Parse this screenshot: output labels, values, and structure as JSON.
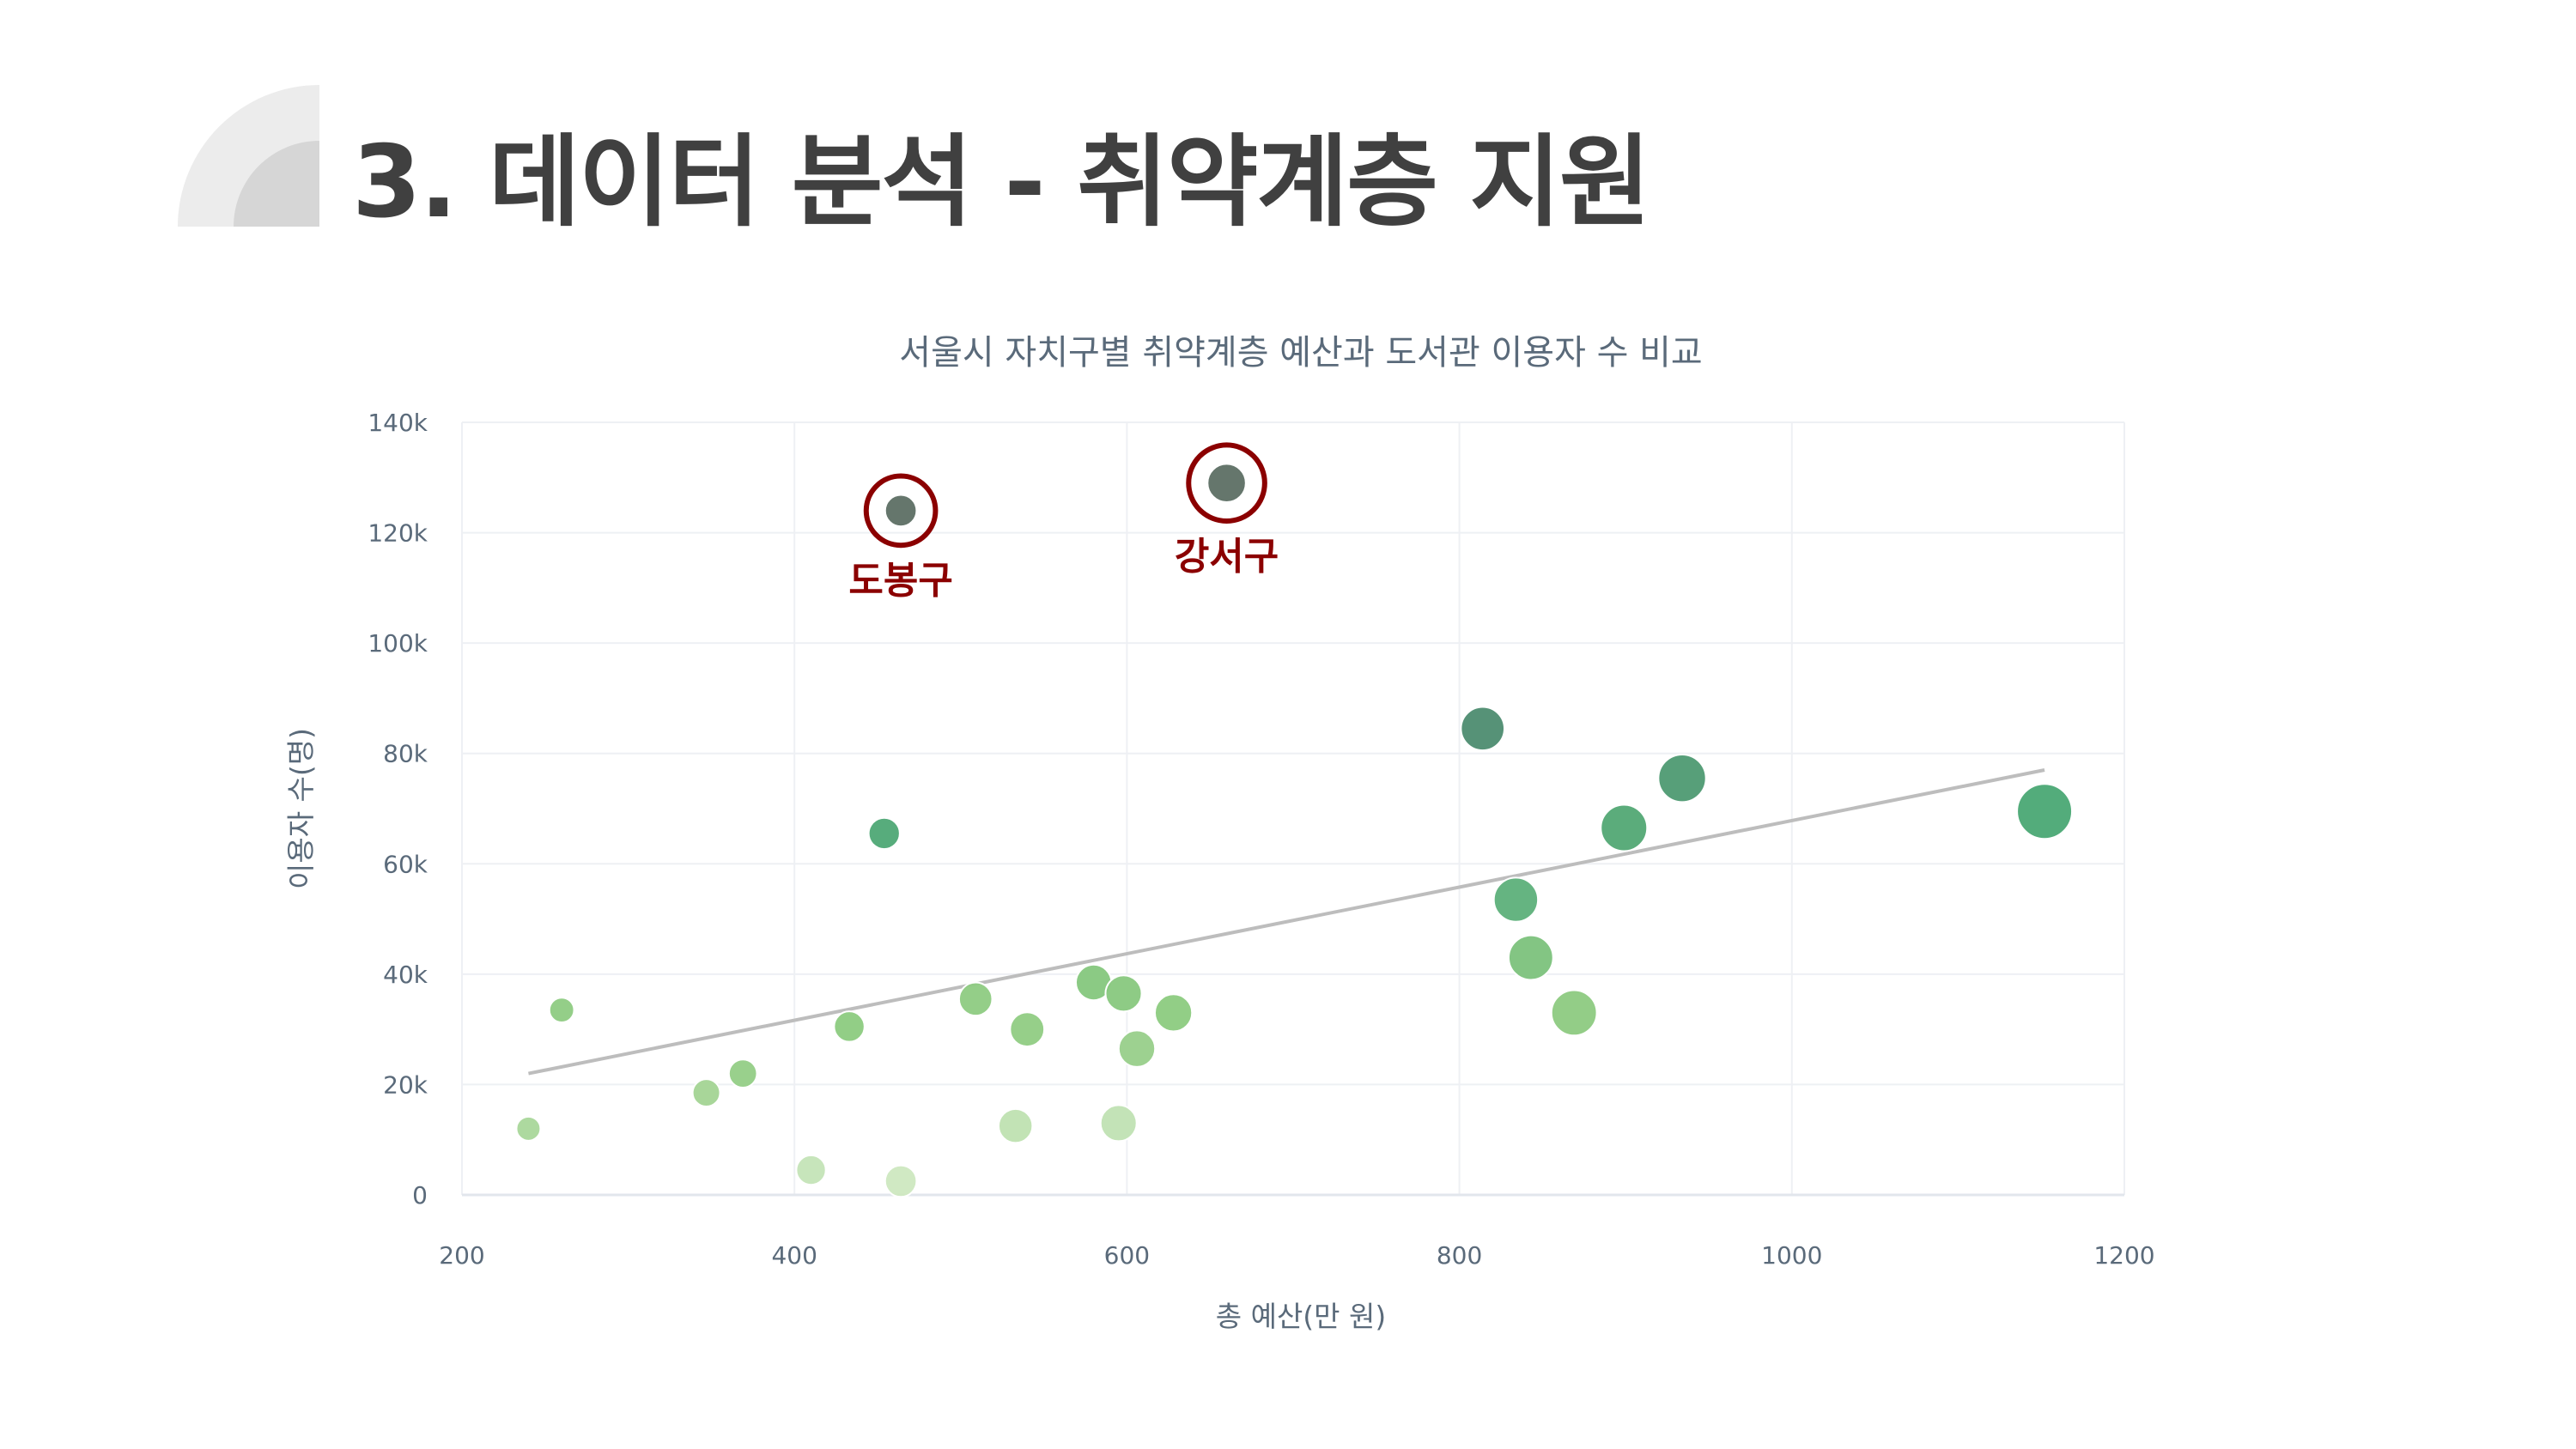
{
  "slide": {
    "title": "3. 데이터 분석 - 취약계층 지원"
  },
  "colors": {
    "title_text": "#404040",
    "deco_light": "#ececec",
    "deco_dark": "#d6d6d6",
    "grid": "#eef0f4",
    "axis_text": "#5a6a7a",
    "trend": "#bdbdbd",
    "highlight": "#8b0000"
  },
  "chart_data": {
    "type": "scatter",
    "title": "서울시 자치구별 취약계층 예산과 도서관 이용자 수 비교",
    "xlabel": "총 예산(만 원)",
    "ylabel": "이용자 수(명)",
    "xlim": [
      200,
      1200
    ],
    "ylim": [
      0,
      140000
    ],
    "xticks": [
      200,
      400,
      600,
      800,
      1000,
      1200
    ],
    "yticks": [
      0,
      20000,
      40000,
      60000,
      80000,
      100000,
      120000,
      140000
    ],
    "ytick_labels": [
      "0",
      "20k",
      "40k",
      "60k",
      "80k",
      "100k",
      "120k",
      "140k"
    ],
    "grid": true,
    "points": [
      {
        "x": 240,
        "y": 12000,
        "size": 240,
        "color": "#a9d79a"
      },
      {
        "x": 260,
        "y": 33500,
        "size": 260,
        "color": "#8ecb82"
      },
      {
        "x": 347,
        "y": 18500,
        "size": 340,
        "color": "#a3d494"
      },
      {
        "x": 369,
        "y": 22000,
        "size": 360,
        "color": "#94cd86"
      },
      {
        "x": 410,
        "y": 4500,
        "size": 400,
        "color": "#c4e4b7"
      },
      {
        "x": 433,
        "y": 30500,
        "size": 430,
        "color": "#8ccb80"
      },
      {
        "x": 454,
        "y": 65500,
        "size": 450,
        "color": "#4ea875"
      },
      {
        "x": 464,
        "y": 2500,
        "size": 460,
        "color": "#cde8c0"
      },
      {
        "x": 464,
        "y": 124000,
        "size": 460,
        "color": "#5d6f64"
      },
      {
        "x": 509,
        "y": 35500,
        "size": 510,
        "color": "#8ecb82"
      },
      {
        "x": 533,
        "y": 12500,
        "size": 530,
        "color": "#bfe2b1"
      },
      {
        "x": 540,
        "y": 30000,
        "size": 540,
        "color": "#90cc83"
      },
      {
        "x": 580,
        "y": 38500,
        "size": 580,
        "color": "#85c77d"
      },
      {
        "x": 595,
        "y": 13000,
        "size": 595,
        "color": "#c0e2b3"
      },
      {
        "x": 598,
        "y": 36500,
        "size": 598,
        "color": "#88c87e"
      },
      {
        "x": 606,
        "y": 26500,
        "size": 606,
        "color": "#98cf8a"
      },
      {
        "x": 628,
        "y": 33000,
        "size": 628,
        "color": "#8ccb80"
      },
      {
        "x": 660,
        "y": 129000,
        "size": 660,
        "color": "#5d6f64"
      },
      {
        "x": 814,
        "y": 84500,
        "size": 814,
        "color": "#4d8c70"
      },
      {
        "x": 834,
        "y": 53500,
        "size": 834,
        "color": "#5db07a"
      },
      {
        "x": 843,
        "y": 43000,
        "size": 843,
        "color": "#7cc27c"
      },
      {
        "x": 869,
        "y": 33000,
        "size": 869,
        "color": "#8dca81"
      },
      {
        "x": 899,
        "y": 66500,
        "size": 899,
        "color": "#52a874"
      },
      {
        "x": 934,
        "y": 75500,
        "size": 934,
        "color": "#4e9a72"
      },
      {
        "x": 1152,
        "y": 69500,
        "size": 1152,
        "color": "#4aa874"
      }
    ],
    "trendline": {
      "x": [
        240,
        1152
      ],
      "y": [
        22000,
        77000
      ]
    },
    "annotations": [
      {
        "x": 464,
        "y": 124000,
        "text": "도봉구"
      },
      {
        "x": 660,
        "y": 129000,
        "text": "강서구"
      }
    ]
  }
}
